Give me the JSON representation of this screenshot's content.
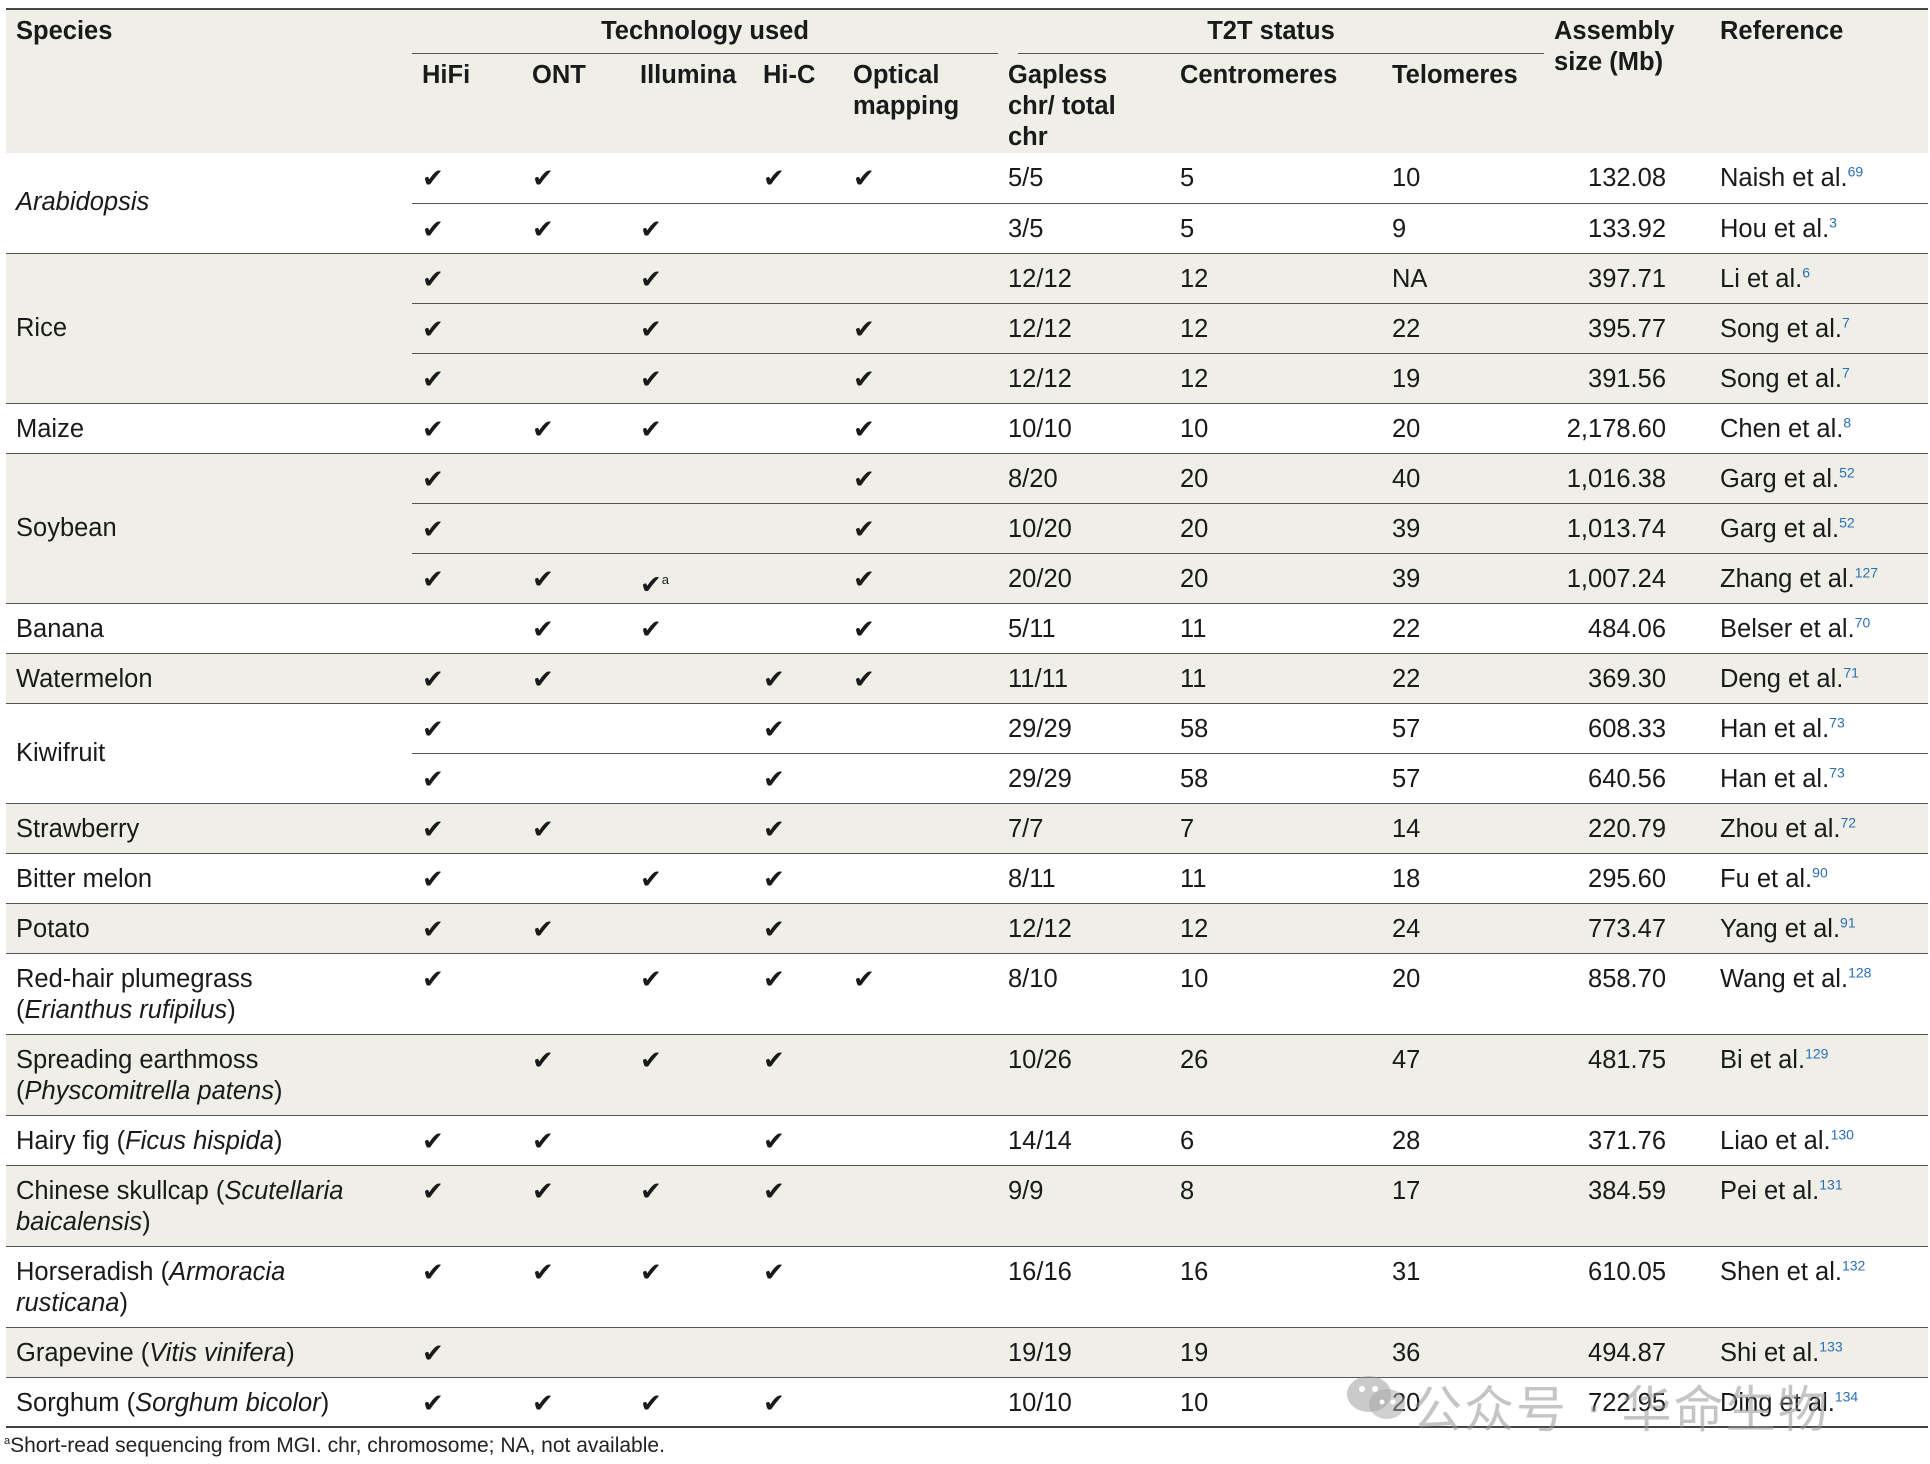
{
  "headers": {
    "species": "Species",
    "technology_group": "Technology used",
    "t2t_group": "T2T status",
    "assembly": "Assembly size (Mb)",
    "reference": "Reference",
    "hifi": "HiFi",
    "ont": "ONT",
    "illumina": "Illumina",
    "hic": "Hi-C",
    "optical": "Optical mapping",
    "gapless": "Gapless chr/ total chr",
    "centromeres": "Centromeres",
    "telomeres": "Telomeres"
  },
  "check_glyph": "✔",
  "rows": [
    {
      "species": "Arabidopsis",
      "species_italic": true,
      "span": 2,
      "shade": false,
      "hifi": true,
      "ont": true,
      "illumina": false,
      "hic": true,
      "optical": true,
      "gapless": "5/5",
      "centromeres": "5",
      "telomeres": "10",
      "assembly": "132.08",
      "ref": "Naish et al.",
      "ref_sup": "69"
    },
    {
      "hifi": true,
      "ont": true,
      "illumina": true,
      "hic": false,
      "optical": false,
      "gapless": "3/5",
      "centromeres": "5",
      "telomeres": "9",
      "assembly": "133.92",
      "ref": "Hou et al.",
      "ref_sup": "3"
    },
    {
      "species": "Rice",
      "span": 3,
      "shade": true,
      "hifi": true,
      "ont": false,
      "illumina": true,
      "hic": false,
      "optical": false,
      "gapless": "12/12",
      "centromeres": "12",
      "telomeres": "NA",
      "assembly": "397.71",
      "ref": "Li et al.",
      "ref_sup": "6"
    },
    {
      "hifi": true,
      "ont": false,
      "illumina": true,
      "hic": false,
      "optical": true,
      "gapless": "12/12",
      "centromeres": "12",
      "telomeres": "22",
      "assembly": "395.77",
      "ref": "Song et al.",
      "ref_sup": "7"
    },
    {
      "hifi": true,
      "ont": false,
      "illumina": true,
      "hic": false,
      "optical": true,
      "gapless": "12/12",
      "centromeres": "12",
      "telomeres": "19",
      "assembly": "391.56",
      "ref": "Song et al.",
      "ref_sup": "7"
    },
    {
      "species": "Maize",
      "span": 1,
      "shade": false,
      "hifi": true,
      "ont": true,
      "illumina": true,
      "hic": false,
      "optical": true,
      "gapless": "10/10",
      "centromeres": "10",
      "telomeres": "20",
      "assembly": "2,178.60",
      "ref": "Chen et al.",
      "ref_sup": "8"
    },
    {
      "species": "Soybean",
      "span": 3,
      "shade": true,
      "hifi": true,
      "ont": false,
      "illumina": false,
      "hic": false,
      "optical": true,
      "gapless": "8/20",
      "centromeres": "20",
      "telomeres": "40",
      "assembly": "1,016.38",
      "ref": "Garg et al.",
      "ref_sup": "52"
    },
    {
      "hifi": true,
      "ont": false,
      "illumina": false,
      "hic": false,
      "optical": true,
      "gapless": "10/20",
      "centromeres": "20",
      "telomeres": "39",
      "assembly": "1,013.74",
      "ref": "Garg et al.",
      "ref_sup": "52"
    },
    {
      "hifi": true,
      "ont": true,
      "illumina": true,
      "illumina_sup": "a",
      "hic": false,
      "optical": true,
      "gapless": "20/20",
      "centromeres": "20",
      "telomeres": "39",
      "assembly": "1,007.24",
      "ref": "Zhang et al.",
      "ref_sup": "127"
    },
    {
      "species": "Banana",
      "span": 1,
      "shade": false,
      "hifi": false,
      "ont": true,
      "illumina": true,
      "hic": false,
      "optical": true,
      "gapless": "5/11",
      "centromeres": "11",
      "telomeres": "22",
      "assembly": "484.06",
      "ref": "Belser et al.",
      "ref_sup": "70"
    },
    {
      "species": "Watermelon",
      "span": 1,
      "shade": true,
      "hifi": true,
      "ont": true,
      "illumina": false,
      "hic": true,
      "optical": true,
      "gapless": "11/11",
      "centromeres": "11",
      "telomeres": "22",
      "assembly": "369.30",
      "ref": "Deng et al.",
      "ref_sup": "71"
    },
    {
      "species": "Kiwifruit",
      "span": 2,
      "shade": false,
      "hifi": true,
      "ont": false,
      "illumina": false,
      "hic": true,
      "optical": false,
      "gapless": "29/29",
      "centromeres": "58",
      "telomeres": "57",
      "assembly": "608.33",
      "ref": "Han et al.",
      "ref_sup": "73"
    },
    {
      "hifi": true,
      "ont": false,
      "illumina": false,
      "hic": true,
      "optical": false,
      "gapless": "29/29",
      "centromeres": "58",
      "telomeres": "57",
      "assembly": "640.56",
      "ref": "Han et al.",
      "ref_sup": "73"
    },
    {
      "species": "Strawberry",
      "span": 1,
      "shade": true,
      "hifi": true,
      "ont": true,
      "illumina": false,
      "hic": true,
      "optical": false,
      "gapless": "7/7",
      "centromeres": "7",
      "telomeres": "14",
      "assembly": "220.79",
      "ref": "Zhou et al.",
      "ref_sup": "72"
    },
    {
      "species": "Bitter melon",
      "span": 1,
      "shade": false,
      "hifi": true,
      "ont": false,
      "illumina": true,
      "hic": true,
      "optical": false,
      "gapless": "8/11",
      "centromeres": "11",
      "telomeres": "18",
      "assembly": "295.60",
      "ref": "Fu et al.",
      "ref_sup": "90"
    },
    {
      "species": "Potato",
      "span": 1,
      "shade": true,
      "hifi": true,
      "ont": true,
      "illumina": false,
      "hic": true,
      "optical": false,
      "gapless": "12/12",
      "centromeres": "12",
      "telomeres": "24",
      "assembly": "773.47",
      "ref": "Yang et al.",
      "ref_sup": "91"
    },
    {
      "species": "Red-hair plumegrass",
      "species_sci": "Erianthus rufipilus",
      "sci_newline": true,
      "span": 1,
      "shade": false,
      "tall": true,
      "hifi": true,
      "ont": false,
      "illumina": true,
      "hic": true,
      "optical": true,
      "gapless": "8/10",
      "centromeres": "10",
      "telomeres": "20",
      "assembly": "858.70",
      "ref": "Wang et al.",
      "ref_sup": "128"
    },
    {
      "species": "Spreading earthmoss",
      "species_sci": "Physcomitrella patens",
      "sci_newline": true,
      "span": 1,
      "shade": true,
      "tall": true,
      "hifi": false,
      "ont": true,
      "illumina": true,
      "hic": true,
      "optical": false,
      "gapless": "10/26",
      "centromeres": "26",
      "telomeres": "47",
      "assembly": "481.75",
      "ref": "Bi et al.",
      "ref_sup": "129"
    },
    {
      "species": "Hairy fig",
      "species_sci": "Ficus hispida",
      "span": 1,
      "shade": false,
      "hifi": true,
      "ont": true,
      "illumina": false,
      "hic": true,
      "optical": false,
      "gapless": "14/14",
      "centromeres": "6",
      "telomeres": "28",
      "assembly": "371.76",
      "ref": "Liao et al.",
      "ref_sup": "130"
    },
    {
      "species": "Chinese skullcap",
      "species_sci_a": "Scutellaria",
      "species_sci_b": "baicalensis",
      "span": 1,
      "shade": true,
      "tall": true,
      "hifi": true,
      "ont": true,
      "illumina": true,
      "hic": true,
      "optical": false,
      "gapless": "9/9",
      "centromeres": "8",
      "telomeres": "17",
      "assembly": "384.59",
      "ref": "Pei et al.",
      "ref_sup": "131"
    },
    {
      "species": "Horseradish",
      "species_sci_a": "Armoracia",
      "species_sci_b": "rusticana",
      "span": 1,
      "shade": false,
      "tall": true,
      "hifi": true,
      "ont": true,
      "illumina": true,
      "hic": true,
      "optical": false,
      "gapless": "16/16",
      "centromeres": "16",
      "telomeres": "31",
      "assembly": "610.05",
      "ref": "Shen et al.",
      "ref_sup": "132"
    },
    {
      "species": "Grapevine",
      "species_sci": "Vitis vinifera",
      "span": 1,
      "shade": true,
      "hifi": true,
      "ont": false,
      "illumina": false,
      "hic": false,
      "optical": false,
      "gapless": "19/19",
      "centromeres": "19",
      "telomeres": "36",
      "assembly": "494.87",
      "ref": "Shi et al.",
      "ref_sup": "133"
    },
    {
      "species": "Sorghum",
      "species_sci": "Sorghum bicolor",
      "span": 1,
      "shade": false,
      "hifi": true,
      "ont": true,
      "illumina": true,
      "hic": true,
      "optical": false,
      "gapless": "10/10",
      "centromeres": "10",
      "telomeres": "20",
      "assembly": "722.95",
      "ref": "Ding et al.",
      "ref_sup": "134"
    }
  ],
  "footnote": {
    "marker": "a",
    "text": "Short-read sequencing from MGI. chr, chromosome; NA, not available."
  },
  "watermark": "公众号 · 华命生物"
}
